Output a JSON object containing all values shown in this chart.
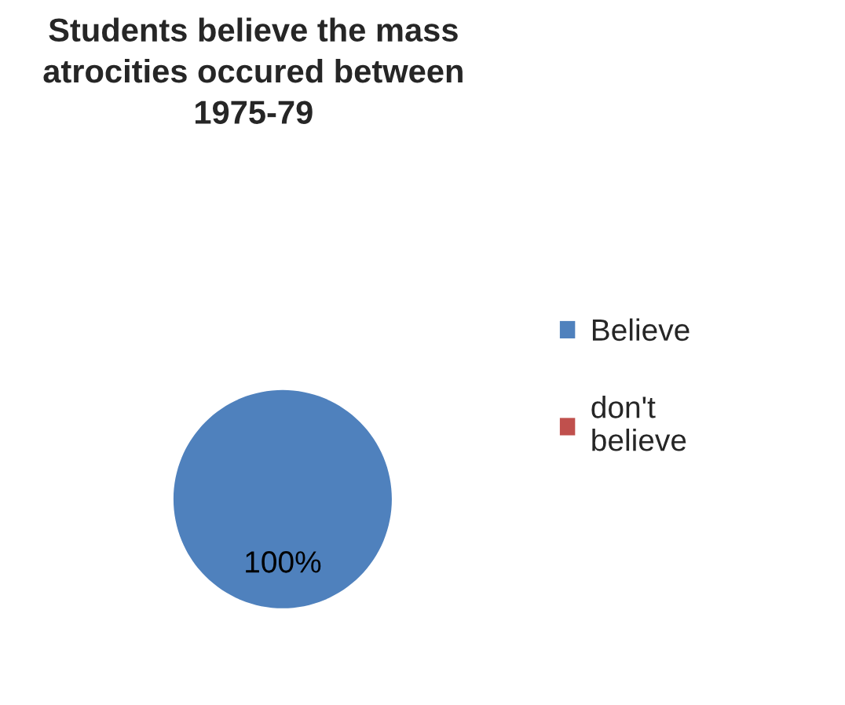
{
  "chart_data": {
    "type": "pie",
    "title": "Students believe the mass\natrocities occured between\n1975-79",
    "categories": [
      "Believe",
      "don't\nbelieve"
    ],
    "values": [
      100,
      0
    ],
    "colors": [
      "#4f81bd",
      "#c0504d"
    ],
    "value_labels": [
      "100%",
      null
    ],
    "legend": "right"
  }
}
